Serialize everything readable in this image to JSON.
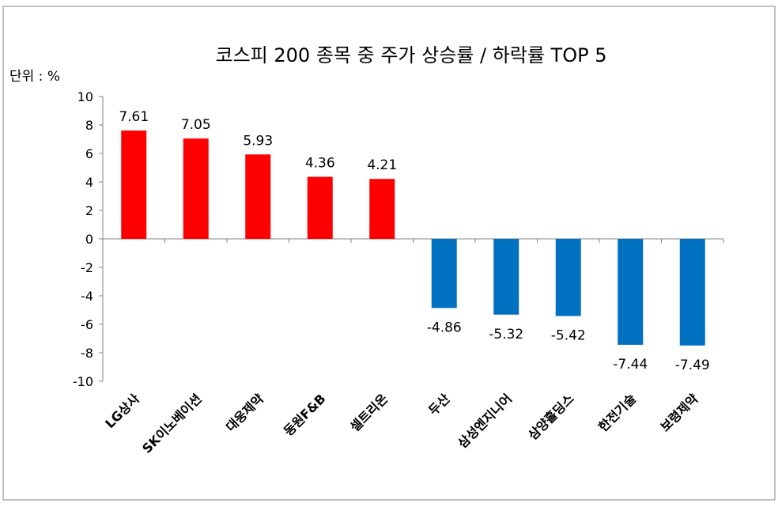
{
  "chart_data": {
    "type": "bar",
    "title": "코스피 200 종목 중  주가 상승률 / 하락률 TOP 5",
    "unit_label": "단위 : %",
    "xlabel": "",
    "ylabel": "",
    "ylim": [
      -10,
      10
    ],
    "yticks": [
      10,
      8,
      6,
      4,
      2,
      0,
      -2,
      -4,
      -6,
      -8,
      -10
    ],
    "grid": false,
    "legend": "none",
    "categories": [
      "LG상사",
      "SK이노베이션",
      "대웅제약",
      "동원F&B",
      "셀트리온",
      "두산",
      "삼성엔지니어",
      "삼양홀딩스",
      "한전기술",
      "보령제약"
    ],
    "values": [
      7.61,
      7.05,
      5.93,
      4.36,
      4.21,
      -4.86,
      -5.32,
      -5.42,
      -7.44,
      -7.49
    ],
    "data_labels": [
      "7.61",
      "7.05",
      "5.93",
      "4.36",
      "4.21",
      "-4.86",
      "-5.32",
      "-5.42",
      "-7.44",
      "-7.49"
    ],
    "colors": {
      "positive": "#ff0000",
      "negative": "#0070c0",
      "axis": "#868686"
    }
  }
}
